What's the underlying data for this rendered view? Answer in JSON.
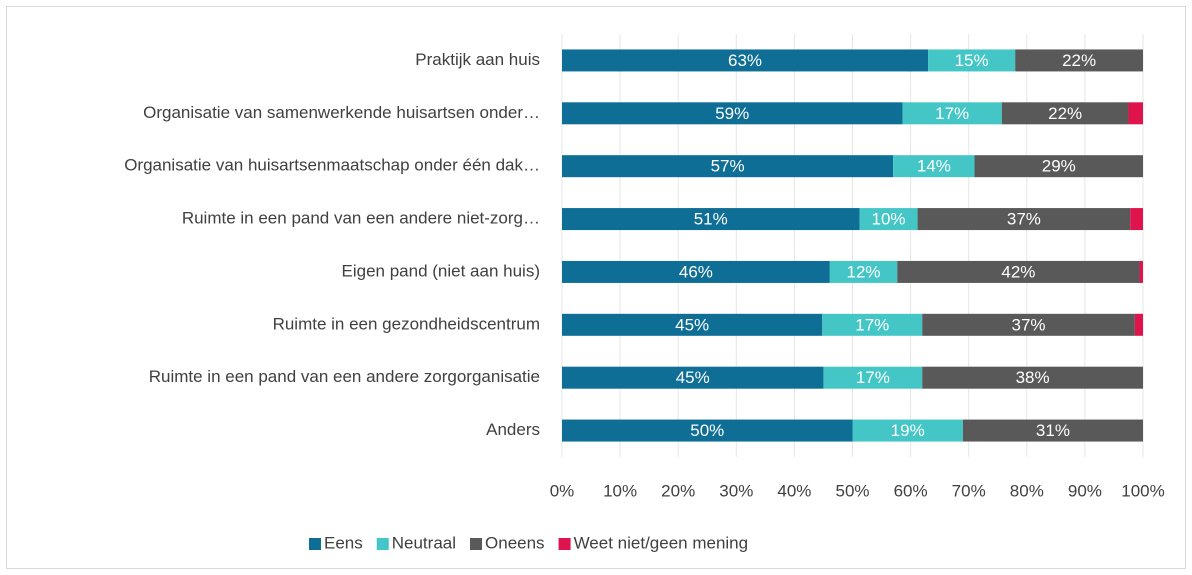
{
  "chart_data": {
    "type": "bar",
    "orientation": "horizontal",
    "stacked": true,
    "categories": [
      "Praktijk aan huis",
      "Organisatie van samenwerkende huisartsen onder…",
      "Organisatie van huisartsenmaatschap onder één dak…",
      "Ruimte in een pand van een andere niet-zorg…",
      "Eigen pand (niet aan huis)",
      "Ruimte in een gezondheidscentrum",
      "Ruimte in een pand van een andere zorgorganisatie",
      "Anders"
    ],
    "series": [
      {
        "name": "Eens",
        "color": "#0e6e96",
        "values": [
          63,
          58.6,
          57,
          51.2,
          46.1,
          44.8,
          45,
          50
        ],
        "value_labels": [
          "63%",
          "59%",
          "57%",
          "51%",
          "46%",
          "45%",
          "45%",
          "50%"
        ]
      },
      {
        "name": "Neutraal",
        "color": "#45c6c6",
        "values": [
          15,
          17.1,
          14,
          10,
          11.6,
          17.2,
          17,
          19
        ],
        "value_labels": [
          "15%",
          "17%",
          "14%",
          "10%",
          "12%",
          "17%",
          "17%",
          "19%"
        ]
      },
      {
        "name": "Oneens",
        "color": "#595959",
        "values": [
          22,
          21.8,
          29,
          36.6,
          41.7,
          36.6,
          38,
          31
        ],
        "value_labels": [
          "22%",
          "22%",
          "29%",
          "37%",
          "42%",
          "37%",
          "38%",
          "31%"
        ]
      },
      {
        "name": "Weet niet/geen mening",
        "color": "#e0144c",
        "values": [
          0,
          2.5,
          0,
          2.2,
          0.6,
          1.4,
          0,
          0
        ]
      }
    ],
    "xlim": [
      0,
      100
    ],
    "xticks": [
      {
        "value": 0,
        "label": "0%"
      },
      {
        "value": 10,
        "label": "10%"
      },
      {
        "value": 20,
        "label": "20%"
      },
      {
        "value": 30,
        "label": "30%"
      },
      {
        "value": 40,
        "label": "40%"
      },
      {
        "value": 50,
        "label": "50%"
      },
      {
        "value": 60,
        "label": "60%"
      },
      {
        "value": 70,
        "label": "70%"
      },
      {
        "value": 80,
        "label": "80%"
      },
      {
        "value": 90,
        "label": "90%"
      },
      {
        "value": 100,
        "label": "100%"
      }
    ],
    "grid": true,
    "legend": "bottom"
  }
}
